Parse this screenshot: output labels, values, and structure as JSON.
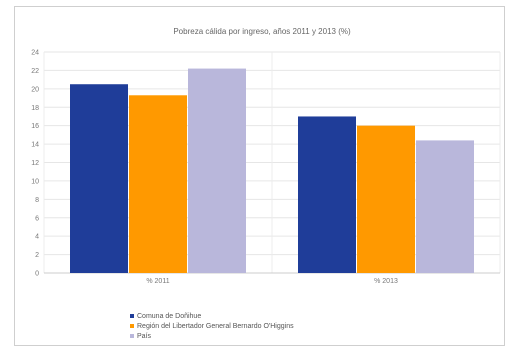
{
  "chart_data": {
    "type": "bar",
    "title": "Pobreza cálida por ingreso, años 2011 y 2013 (%)",
    "categories": [
      "% 2011",
      "% 2013"
    ],
    "ylim": [
      0,
      24
    ],
    "yticks": [
      0,
      2,
      4,
      6,
      8,
      10,
      12,
      14,
      16,
      18,
      20,
      22,
      24
    ],
    "grid": true,
    "legend_position": "bottom-center",
    "series": [
      {
        "name": "Comuna de Doñihue",
        "values": [
          20.5,
          17.0
        ],
        "color": "#1f3d99"
      },
      {
        "name": "Región del Libertador General Bernardo O'Higgins",
        "values": [
          19.3,
          16.0
        ],
        "color": "#ff9900"
      },
      {
        "name": "País",
        "values": [
          22.2,
          14.4
        ],
        "color": "#b9b7db"
      }
    ]
  }
}
